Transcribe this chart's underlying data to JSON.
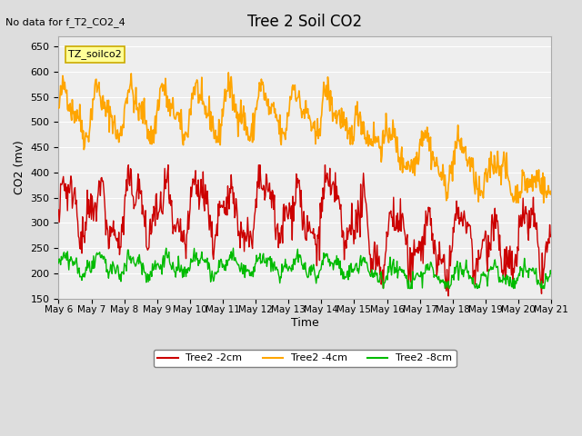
{
  "title": "Tree 2 Soil CO2",
  "no_data_label": "No data for f_T2_CO2_4",
  "tz_label": "TZ_soilco2",
  "ylabel": "CO2 (mv)",
  "xlabel": "Time",
  "ylim": [
    150,
    670
  ],
  "yticks": [
    150,
    200,
    250,
    300,
    350,
    400,
    450,
    500,
    550,
    600,
    650
  ],
  "x_labels": [
    "May 6",
    "May 7",
    "May 8",
    "May 9",
    "May 10",
    "May 11",
    "May 12",
    "May 13",
    "May 14",
    "May 15",
    "May 16",
    "May 17",
    "May 18",
    "May 19",
    "May 20",
    "May 21"
  ],
  "colors": {
    "red": "#cc0000",
    "orange": "#ffa500",
    "green": "#00bb00",
    "fig_bg": "#dddddd",
    "plot_bg": "#eeeeee",
    "tz_box_bg": "#ffff99",
    "tz_box_border": "#ccaa00"
  },
  "legend": [
    {
      "label": "Tree2 -2cm",
      "color": "#cc0000"
    },
    {
      "label": "Tree2 -4cm",
      "color": "#ffa500"
    },
    {
      "label": "Tree2 -8cm",
      "color": "#00bb00"
    }
  ]
}
